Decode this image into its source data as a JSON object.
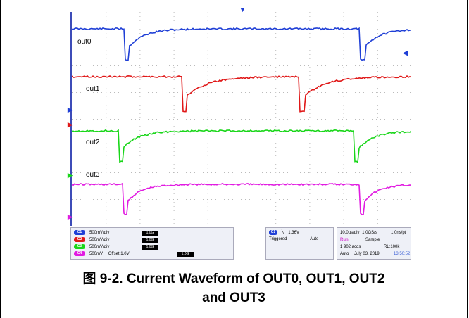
{
  "traces": [
    {
      "label": "out0",
      "color": "#1f3fd6"
    },
    {
      "label": "out1",
      "color": "#e01818"
    },
    {
      "label": "out2",
      "color": "#19d619"
    },
    {
      "label": "out3",
      "color": "#e11be1"
    }
  ],
  "channels": [
    {
      "id": "C1",
      "scale": "500mV/div",
      "bw": "1.0G",
      "color": "#1f3fd6"
    },
    {
      "id": "C2",
      "scale": "500mV/div",
      "bw": "1.0G",
      "color": "#e01818"
    },
    {
      "id": "C3",
      "scale": "500mV/div",
      "bw": "1.0G",
      "color": "#19d619"
    },
    {
      "id": "C4",
      "scale": "500mV",
      "offset": "Offset:1.0V",
      "bw": "1.0G",
      "color": "#e11be1"
    }
  ],
  "trigger": {
    "source": "C1",
    "level": "1.36V",
    "state": "Triggered",
    "mode": "Auto"
  },
  "acquisition": {
    "timebase": "10.0µs/div",
    "sample_rate": "1.0GS/s",
    "resolution": "1.0ns/pt",
    "run_state": "Run",
    "mode": "Sample",
    "acqs": "1 902 acqs",
    "record_length": "RL:100k",
    "trigger_mode": "Auto",
    "date": "July 03, 2019",
    "time": "13:50:52"
  },
  "caption": {
    "line1": "图 9-2. Current Waveform of OUT0, OUT1, OUT2",
    "line2": "and OUT3"
  }
}
